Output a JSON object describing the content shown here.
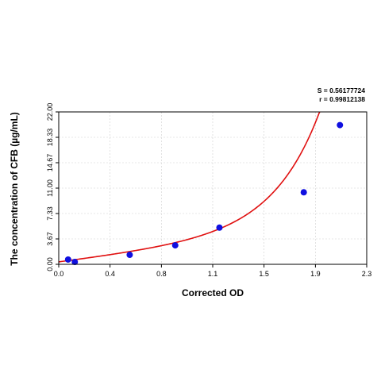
{
  "chart_data": {
    "type": "scatter",
    "xlabel": "Corrected OD",
    "ylabel": "The concentration of CFB (µg/mL)",
    "xlim": [
      0.0,
      2.3
    ],
    "ylim": [
      0.0,
      22.0
    ],
    "x_ticks": [
      "0.0",
      "0.4",
      "0.8",
      "1.1",
      "1.5",
      "1.9",
      "2.3"
    ],
    "x_tick_values": [
      0.0,
      0.383,
      0.767,
      1.15,
      1.533,
      1.917,
      2.3
    ],
    "y_ticks": [
      "0.00",
      "3.67",
      "7.33",
      "11.00",
      "14.67",
      "18.33",
      "22.00"
    ],
    "y_tick_values": [
      0.0,
      3.667,
      7.333,
      11.0,
      14.667,
      18.333,
      22.0
    ],
    "grid": true,
    "stats": [
      "S = 0.56177724",
      "r = 0.99812138"
    ],
    "series": [
      {
        "points": [
          {
            "x": 0.07,
            "y": 0.69
          },
          {
            "x": 0.12,
            "y": 0.34
          },
          {
            "x": 0.53,
            "y": 1.37
          },
          {
            "x": 0.87,
            "y": 2.74
          },
          {
            "x": 1.2,
            "y": 5.3
          },
          {
            "x": 1.83,
            "y": 10.4
          },
          {
            "x": 2.1,
            "y": 20.1
          }
        ],
        "color": "#1010e0",
        "fit_color": "#e01010"
      }
    ]
  }
}
